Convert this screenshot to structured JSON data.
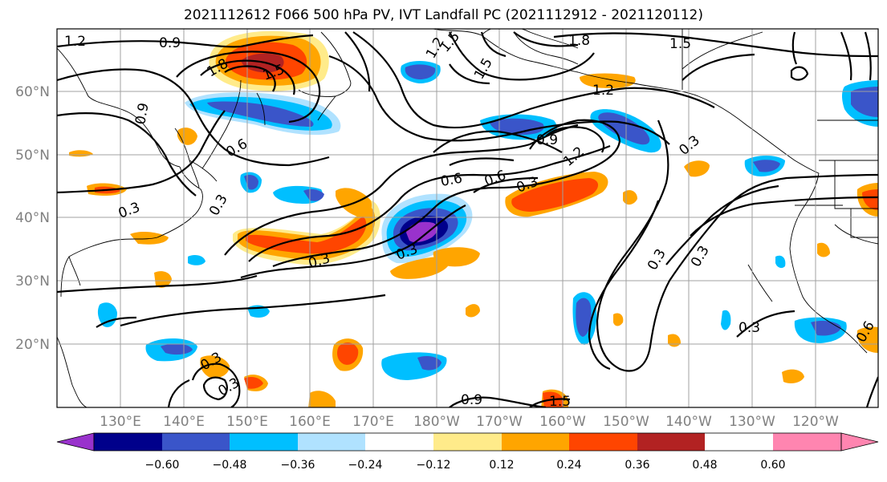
{
  "title": "2021112612 F066 500 hPa PV, IVT Landfall PC (2021112912 - 2021120112)",
  "longitude_labels": [
    "130°E",
    "140°E",
    "150°E",
    "160°E",
    "170°E",
    "180°W",
    "170°W",
    "160°W",
    "150°W",
    "140°W",
    "130°W",
    "120°W"
  ],
  "latitude_labels": [
    "20°N",
    "30°N",
    "40°N",
    "50°N",
    "60°N"
  ],
  "colorbar": {
    "tick_labels": [
      "−0.60",
      "−0.48",
      "−0.36",
      "−0.24",
      "−0.12",
      "0.12",
      "0.24",
      "0.36",
      "0.48",
      "0.60"
    ],
    "bins": [
      {
        "range": "< -0.60",
        "color": "#9932cc"
      },
      {
        "range": "-0.60 to -0.48",
        "color": "#00008b"
      },
      {
        "range": "-0.48 to -0.36",
        "color": "#3a55c9"
      },
      {
        "range": "-0.36 to -0.24",
        "color": "#00bfff"
      },
      {
        "range": "-0.24 to -0.12",
        "color": "#b0e2ff"
      },
      {
        "range": "-0.12 to 0.12",
        "color": "#ffffff"
      },
      {
        "range": "0.12 to 0.24",
        "color": "#ffeb8a"
      },
      {
        "range": "0.24 to 0.36",
        "color": "#ffa500"
      },
      {
        "range": "0.36 to 0.48",
        "color": "#ff4500"
      },
      {
        "range": "0.48 to 0.60",
        "color": "#b22222"
      },
      {
        "range": "> 0.60",
        "color": "#ff85b0"
      }
    ]
  },
  "contour_labels": [
    "1.2",
    "0.9",
    "1.8",
    "1.5",
    "1.2",
    "1.5",
    "0.9",
    "0.6",
    "0.3",
    "0.3",
    "1.5",
    "1.8",
    "1.5",
    "1.2",
    "0.9",
    "1.2",
    "0.6",
    "0.6",
    "0.3",
    "0.3",
    "0.3",
    "0.3",
    "0.3",
    "0.3",
    "0.3",
    "0.3",
    "0.3",
    "0.9",
    "1.5",
    "0.6"
  ]
}
